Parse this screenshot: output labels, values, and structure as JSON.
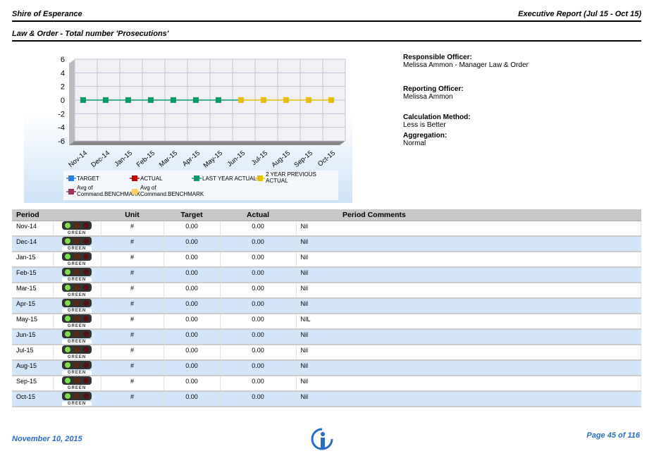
{
  "header": {
    "org": "Shire of Esperance",
    "report": "Executive Report (Jul 15 - Oct 15)",
    "subtitle": "Law & Order - Total number 'Prosecutions'"
  },
  "info": [
    {
      "label": "Responsible Officer:",
      "value": "Melissa Ammon - Manager Law & Order"
    },
    {
      "label": "Reporting Officer:",
      "value": "Melissa Ammon"
    },
    {
      "label": "Calculation Method:",
      "value": "Less is Better"
    },
    {
      "label": "Aggregation:",
      "value": "Normal"
    }
  ],
  "chart_data": {
    "type": "line",
    "categories": [
      "Nov-14",
      "Dec-14",
      "Jan-15",
      "Feb-15",
      "Mar-15",
      "Apr-15",
      "May-15",
      "Jun-15",
      "Jul-15",
      "Aug-15",
      "Sep-15",
      "Oct-15"
    ],
    "ylim": [
      -6,
      6
    ],
    "yticks": [
      "6",
      "4",
      "2",
      "0",
      "-2",
      "-4",
      "-6"
    ],
    "series": [
      {
        "name": "LAST YEAR ACTUAL",
        "color": "#0a9a6a",
        "values": [
          0,
          0,
          0,
          0,
          0,
          0,
          0,
          0,
          null,
          null,
          null,
          null
        ]
      },
      {
        "name": "2 YEAR PREVIOUS ACTUAL",
        "color": "#e6c000",
        "values": [
          null,
          null,
          null,
          null,
          null,
          null,
          null,
          0,
          0,
          0,
          0,
          0
        ]
      }
    ],
    "legend": [
      {
        "name": "TARGET",
        "color": "#2a7de1"
      },
      {
        "name": "ACTUAL",
        "color": "#c00000"
      },
      {
        "name": "LAST YEAR ACTUAL",
        "color": "#0a9a6a"
      },
      {
        "name": "2 YEAR PREVIOUS ACTUAL",
        "color": "#e6c000"
      },
      {
        "name": "Avg of Command.BENCHMARK",
        "color": "#a0305a"
      },
      {
        "name": "Avg of Command.BENCHMARK",
        "color": "#ffd060"
      }
    ]
  },
  "table": {
    "headers": [
      "Period",
      "",
      "Unit",
      "Target",
      "Actual",
      "Period Comments"
    ],
    "status_label": "GREEN",
    "rows": [
      {
        "period": "Nov-14",
        "unit": "#",
        "target": "0.00",
        "actual": "0.00",
        "comment": "Nil"
      },
      {
        "period": "Dec-14",
        "unit": "#",
        "target": "0.00",
        "actual": "0.00",
        "comment": "Nil"
      },
      {
        "period": "Jan-15",
        "unit": "#",
        "target": "0.00",
        "actual": "0.00",
        "comment": "Nil"
      },
      {
        "period": "Feb-15",
        "unit": "#",
        "target": "0.00",
        "actual": "0.00",
        "comment": "Nil"
      },
      {
        "period": "Mar-15",
        "unit": "#",
        "target": "0.00",
        "actual": "0.00",
        "comment": "Nil"
      },
      {
        "period": "Apr-15",
        "unit": "#",
        "target": "0.00",
        "actual": "0.00",
        "comment": "Nil"
      },
      {
        "period": "May-15",
        "unit": "#",
        "target": "0.00",
        "actual": "0.00",
        "comment": "NIL"
      },
      {
        "period": "Jun-15",
        "unit": "#",
        "target": "0.00",
        "actual": "0.00",
        "comment": "Nil"
      },
      {
        "period": "Jul-15",
        "unit": "#",
        "target": "0.00",
        "actual": "0.00",
        "comment": "Nil"
      },
      {
        "period": "Aug-15",
        "unit": "#",
        "target": "0.00",
        "actual": "0.00",
        "comment": "Nil"
      },
      {
        "period": "Sep-15",
        "unit": "#",
        "target": "0.00",
        "actual": "0.00",
        "comment": "Nil"
      },
      {
        "period": "Oct-15",
        "unit": "#",
        "target": "0.00",
        "actual": "0.00",
        "comment": "Nil"
      }
    ]
  },
  "footer": {
    "date": "November 10, 2015",
    "page": "Page 45 of 116"
  }
}
